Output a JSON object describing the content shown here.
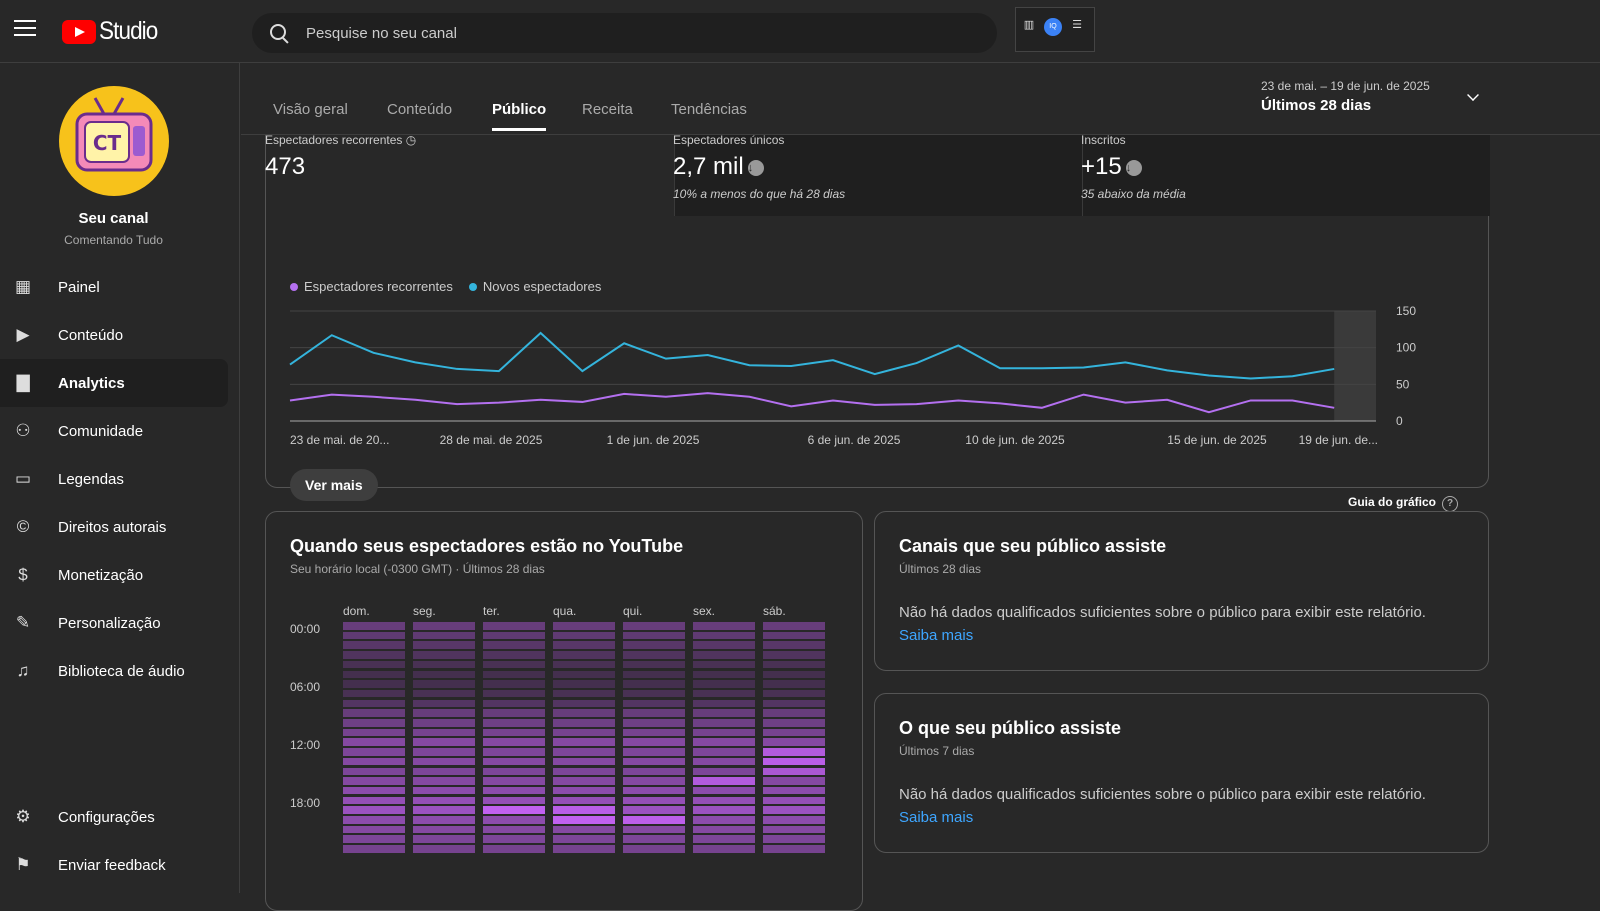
{
  "app": {
    "logo_text": "Studio",
    "search_placeholder": "Pesquise no seu canal"
  },
  "channel": {
    "name": "Seu canal",
    "subtitle": "Comentando Tudo",
    "avatar_text": "CT"
  },
  "sidebar": {
    "items": [
      {
        "label": "Painel",
        "icon": "dashboard-icon"
      },
      {
        "label": "Conteúdo",
        "icon": "content-icon"
      },
      {
        "label": "Analytics",
        "icon": "analytics-icon"
      },
      {
        "label": "Comunidade",
        "icon": "community-icon"
      },
      {
        "label": "Legendas",
        "icon": "subtitles-icon"
      },
      {
        "label": "Direitos autorais",
        "icon": "copyright-icon"
      },
      {
        "label": "Monetização",
        "icon": "monetization-icon"
      },
      {
        "label": "Personalização",
        "icon": "customization-icon"
      },
      {
        "label": "Biblioteca de áudio",
        "icon": "audio-library-icon"
      }
    ],
    "bottom": [
      {
        "label": "Configurações",
        "icon": "gear-icon"
      },
      {
        "label": "Enviar feedback",
        "icon": "feedback-icon"
      }
    ]
  },
  "tabs": [
    "Visão geral",
    "Conteúdo",
    "Público",
    "Receita",
    "Tendências"
  ],
  "active_tab": "Público",
  "date": {
    "range": "23 de mai. – 19 de jun. de 2025",
    "label": "Últimos 28 dias"
  },
  "stats": [
    {
      "title": "Espectadores recorrentes",
      "value": "473",
      "note": ""
    },
    {
      "title": "Espectadores únicos",
      "value": "2,7 mil",
      "note": "10% a menos do que há 28 dias"
    },
    {
      "title": "Inscritos",
      "value": "+15",
      "note": "35 abaixo da média"
    }
  ],
  "chart_data": {
    "type": "line",
    "series": [
      {
        "name": "Espectadores recorrentes",
        "color": "#b470f0",
        "values": [
          28,
          36,
          33,
          29,
          23,
          25,
          29,
          26,
          37,
          33,
          38,
          33,
          20,
          28,
          22,
          23,
          28,
          24,
          18,
          36,
          25,
          29,
          12,
          28,
          28,
          18
        ]
      },
      {
        "name": "Novos espectadores",
        "color": "#34b4dc",
        "values": [
          77,
          117,
          93,
          80,
          71,
          68,
          120,
          68,
          106,
          85,
          90,
          76,
          75,
          83,
          64,
          79,
          103,
          72,
          72,
          73,
          80,
          69,
          62,
          58,
          61,
          71
        ]
      }
    ],
    "x_tick_labels": [
      "23 de mai. de 20...",
      "28 de mai. de 2025",
      "1 de jun. de 2025",
      "6 de jun. de 2025",
      "10 de jun. de 2025",
      "15 de jun. de 2025",
      "19 de jun. de..."
    ],
    "y_ticks": [
      "150",
      "100",
      "50",
      "0"
    ],
    "ylim": [
      0,
      150
    ]
  },
  "main_card": {
    "more_button": "Ver mais",
    "chart_guide": "Guia do gráfico"
  },
  "heatmap": {
    "title": "Quando seus espectadores estão no YouTube",
    "subtitle": "Seu horário local (-0300 GMT) · Últimos 28 dias",
    "days": [
      "dom.",
      "seg.",
      "ter.",
      "qua.",
      "qui.",
      "sex.",
      "sáb."
    ],
    "times": [
      "00:00",
      "06:00",
      "12:00",
      "18:00"
    ]
  },
  "channels_card": {
    "title": "Canais que seu público assiste",
    "subtitle": "Últimos 28 dias",
    "text": "Não há dados qualificados suficientes sobre o público para exibir este relatório.",
    "link": "Saiba mais"
  },
  "watch_card": {
    "title": "O que seu público assiste",
    "subtitle": "Últimos 7 dias",
    "text": "Não há dados qualificados suficientes sobre o público para exibir este relatório.",
    "link": "Saiba mais"
  }
}
